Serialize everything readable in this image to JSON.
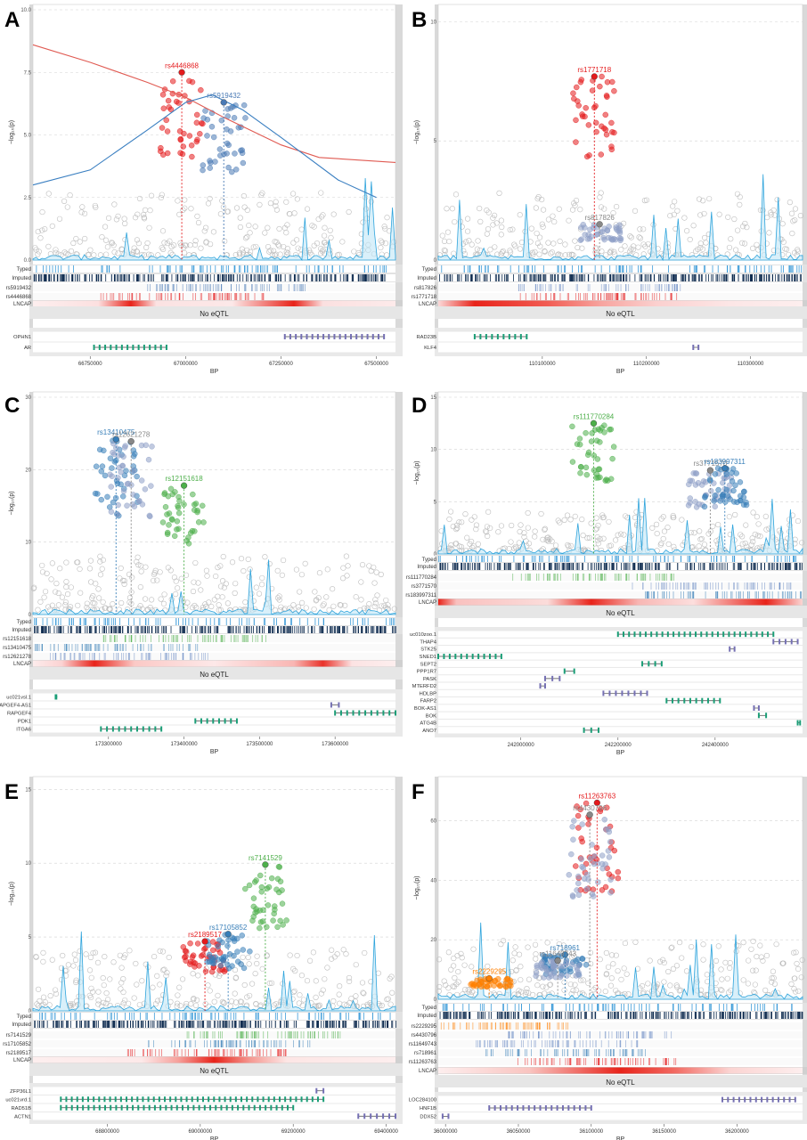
{
  "figure": {
    "panels_meta": "six regional association panels A-F"
  },
  "chart_data": [
    {
      "panel": "A",
      "type": "scatter",
      "ylabel": "−log₁₀(p)",
      "xlabel": "BP",
      "y_ticks": [
        "0.0",
        "2.5",
        "5.0",
        "7.5",
        "10.0"
      ],
      "ylim": [
        0,
        10
      ],
      "x_ticks": [
        "66750000",
        "67000000",
        "67250000",
        "67500000"
      ],
      "xlim": [
        66600000,
        67550000
      ],
      "snps": [
        {
          "id": "rs4446868",
          "color": "#e41a1c",
          "x": 66990000,
          "y": 7.5
        },
        {
          "id": "rs5919432",
          "color": "#4a7ab5",
          "x": 67100000,
          "y": 6.3
        }
      ],
      "tracks": [
        "Typed",
        "Imputed"
      ],
      "snp_tracks": [
        "rs5919432",
        "rs4446868"
      ],
      "eqtl_label": "LNCAP",
      "eqtl_text": "No eQTL",
      "genes": [
        {
          "name": "OPHN1",
          "start": 67260000,
          "end": 67520000,
          "color": "#7570b3",
          "row": 0
        },
        {
          "name": "AR",
          "start": 66760000,
          "end": 66950000,
          "color": "#1b9e77",
          "row": 1
        }
      ],
      "red_curve": [
        [
          66600000,
          8.6
        ],
        [
          66750000,
          7.9
        ],
        [
          66900000,
          7.1
        ],
        [
          67000000,
          6.5
        ],
        [
          67100000,
          5.7
        ],
        [
          67250000,
          4.6
        ],
        [
          67350000,
          4.1
        ],
        [
          67550000,
          3.9
        ]
      ],
      "blue_curve": [
        [
          66600000,
          3.0
        ],
        [
          66750000,
          3.6
        ],
        [
          66900000,
          5.2
        ],
        [
          67000000,
          6.3
        ],
        [
          67070000,
          6.6
        ],
        [
          67150000,
          6.0
        ],
        [
          67250000,
          4.9
        ],
        [
          67400000,
          3.2
        ],
        [
          67500000,
          2.5
        ]
      ]
    },
    {
      "panel": "B",
      "type": "scatter",
      "ylabel": "−log₁₀(p)",
      "xlabel": "BP",
      "y_ticks": [
        "0",
        "5",
        "10"
      ],
      "ylim": [
        0,
        10.5
      ],
      "x_ticks": [
        "110100000",
        "110200000",
        "110300000"
      ],
      "xlim": [
        110000000,
        110350000
      ],
      "snps": [
        {
          "id": "rs1771718",
          "color": "#e41a1c",
          "x": 110150000,
          "y": 7.7
        },
        {
          "id": "rs817826",
          "color": "#888888",
          "x": 110155000,
          "y": 1.5
        }
      ],
      "tracks": [
        "Typed",
        "Imputed"
      ],
      "snp_tracks": [
        "rs817826",
        "rs1771718"
      ],
      "eqtl_label": "LNCAP",
      "eqtl_text": "No eQTL",
      "genes": [
        {
          "name": "RAD23B",
          "start": 110035000,
          "end": 110085000,
          "color": "#1b9e77",
          "row": 0
        },
        {
          "name": "KLF4",
          "start": 110245000,
          "end": 110250000,
          "color": "#7570b3",
          "row": 1
        }
      ]
    },
    {
      "panel": "C",
      "type": "scatter",
      "ylabel": "−log₁₀(p)",
      "xlabel": "BP",
      "y_ticks": [
        "0",
        "10",
        "20",
        "30"
      ],
      "ylim": [
        0,
        30
      ],
      "x_ticks": [
        "173300000",
        "173400000",
        "173500000",
        "173600000"
      ],
      "xlim": [
        173200000,
        173680000
      ],
      "snps": [
        {
          "id": "rs13410475",
          "color": "#377eb8",
          "x": 173310000,
          "y": 24.2
        },
        {
          "id": "rs12621278",
          "color": "#888888",
          "x": 173330000,
          "y": 23.9
        },
        {
          "id": "rs12151618",
          "color": "#4daf4a",
          "x": 173400000,
          "y": 17.8
        }
      ],
      "tracks": [
        "Typed",
        "Imputed"
      ],
      "snp_tracks": [
        "rs12151618",
        "rs13410475",
        "rs12621278"
      ],
      "eqtl_label": "LNCAP",
      "eqtl_text": "No eQTL",
      "genes": [
        {
          "name": "uc021vsl.1",
          "start": 173230000,
          "end": 173231000,
          "color": "#1b9e77",
          "row": 0
        },
        {
          "name": "RAPGEF4-AS1",
          "start": 173595000,
          "end": 173605000,
          "color": "#7570b3",
          "row": 1
        },
        {
          "name": "RAPGEF4",
          "start": 173600000,
          "end": 173680000,
          "color": "#1b9e77",
          "row": 2
        },
        {
          "name": "PDK1",
          "start": 173415000,
          "end": 173470000,
          "color": "#1b9e77",
          "row": 3
        },
        {
          "name": "ITGA6",
          "start": 173290000,
          "end": 173370000,
          "color": "#1b9e77",
          "row": 4
        }
      ]
    },
    {
      "panel": "D",
      "type": "scatter",
      "ylabel": "−log₁₀(p)",
      "xlabel": "BP",
      "y_ticks": [
        "0",
        "5",
        "10",
        "15"
      ],
      "ylim": [
        0,
        15
      ],
      "x_ticks": [
        "242000000",
        "242200000",
        "242400000"
      ],
      "xlim": [
        241830000,
        242580000
      ],
      "snps": [
        {
          "id": "rs111770284",
          "color": "#4daf4a",
          "x": 242150000,
          "y": 12.5
        },
        {
          "id": "rs3771570",
          "color": "#888888",
          "x": 242390000,
          "y": 8.0
        },
        {
          "id": "rs183997311",
          "color": "#377eb8",
          "x": 242420000,
          "y": 8.2
        }
      ],
      "tracks": [
        "Typed",
        "Imputed"
      ],
      "snp_tracks": [
        "rs111770284",
        "rs3771570",
        "rs183997311"
      ],
      "eqtl_label": "LNCAP",
      "eqtl_text": "No eQTL",
      "genes": [
        {
          "name": "uc010zoo.1",
          "start": 242200000,
          "end": 242520000,
          "color": "#1b9e77",
          "row": 0
        },
        {
          "name": "THAP4",
          "start": 242520000,
          "end": 242570000,
          "color": "#7570b3",
          "row": 1
        },
        {
          "name": "STK25",
          "start": 242430000,
          "end": 242440000,
          "color": "#7570b3",
          "row": 2
        },
        {
          "name": "SNED1",
          "start": 241830000,
          "end": 241960000,
          "color": "#1b9e77",
          "row": 3
        },
        {
          "name": "SEPT2",
          "start": 242250000,
          "end": 242290000,
          "color": "#1b9e77",
          "row": 4
        },
        {
          "name": "PPP1R7",
          "start": 242090000,
          "end": 242110000,
          "color": "#1b9e77",
          "row": 5
        },
        {
          "name": "PASK",
          "start": 242050000,
          "end": 242080000,
          "color": "#7570b3",
          "row": 6
        },
        {
          "name": "MTERFD2",
          "start": 242040000,
          "end": 242050000,
          "color": "#7570b3",
          "row": 7
        },
        {
          "name": "HDLBP",
          "start": 242170000,
          "end": 242260000,
          "color": "#7570b3",
          "row": 8
        },
        {
          "name": "FARP2",
          "start": 242300000,
          "end": 242410000,
          "color": "#1b9e77",
          "row": 9
        },
        {
          "name": "BOK-AS1",
          "start": 242480000,
          "end": 242490000,
          "color": "#7570b3",
          "row": 10
        },
        {
          "name": "BOK",
          "start": 242490000,
          "end": 242505000,
          "color": "#1b9e77",
          "row": 11
        },
        {
          "name": "ATG4B",
          "start": 242570000,
          "end": 242575000,
          "color": "#1b9e77",
          "row": 12
        },
        {
          "name": "ANO7",
          "start": 242130000,
          "end": 242160000,
          "color": "#1b9e77",
          "row": 13
        }
      ]
    },
    {
      "panel": "E",
      "type": "scatter",
      "ylabel": "−log₁₀(p)",
      "xlabel": "BP",
      "y_ticks": [
        "0",
        "5",
        "10",
        "15"
      ],
      "ylim": [
        0,
        15.5
      ],
      "x_ticks": [
        "68800000",
        "69000000",
        "69200000",
        "69400000"
      ],
      "xlim": [
        68640000,
        69420000
      ],
      "snps": [
        {
          "id": "rs2189517",
          "color": "#e41a1c",
          "x": 69010000,
          "y": 4.7
        },
        {
          "id": "rs17105852",
          "color": "#377eb8",
          "x": 69060000,
          "y": 5.2
        },
        {
          "id": "rs7141529",
          "color": "#4daf4a",
          "x": 69140000,
          "y": 9.9
        }
      ],
      "tracks": [
        "Typed",
        "Imputed"
      ],
      "snp_tracks": [
        "rs7141529",
        "rs17105852",
        "rs2189517"
      ],
      "eqtl_label": "LNCAP",
      "eqtl_text": "No eQTL",
      "genes": [
        {
          "name": "ZFP36L1",
          "start": 69250000,
          "end": 69265000,
          "color": "#7570b3",
          "row": 0
        },
        {
          "name": "uc021vrd.1",
          "start": 68700000,
          "end": 69265000,
          "color": "#1b9e77",
          "row": 1
        },
        {
          "name": "RAD51B",
          "start": 68700000,
          "end": 69200000,
          "color": "#1b9e77",
          "row": 2
        },
        {
          "name": "ACTN1",
          "start": 69340000,
          "end": 69420000,
          "color": "#7570b3",
          "row": 3
        }
      ]
    },
    {
      "panel": "F",
      "type": "scatter",
      "ylabel": "−log₁₀(p)",
      "xlabel": "BP",
      "y_ticks": [
        "0",
        "20",
        "40",
        "60"
      ],
      "ylim": [
        0,
        73
      ],
      "x_ticks": [
        "36000000",
        "36050000",
        "36100000",
        "36150000",
        "36200000"
      ],
      "xlim": [
        35995000,
        36245000
      ],
      "snps": [
        {
          "id": "rs11263763",
          "color": "#e41a1c",
          "x": 36104000,
          "y": 66
        },
        {
          "id": "rs4430796",
          "color": "#888888",
          "x": 36099000,
          "y": 62
        },
        {
          "id": "rs718961",
          "color": "#377eb8",
          "x": 36082000,
          "y": 15
        },
        {
          "id": "rs11649743",
          "color": "#888888",
          "x": 36077000,
          "y": 13
        },
        {
          "id": "rs2229295",
          "color": "#ff7f00",
          "x": 36030000,
          "y": 7
        }
      ],
      "tracks": [
        "Typed",
        "Imputed"
      ],
      "snp_tracks": [
        "rs2229295",
        "rs4430796",
        "rs11649743",
        "rs718961",
        "rs11263763"
      ],
      "eqtl_label": "LNCAP",
      "eqtl_text": "No eQTL",
      "genes": [
        {
          "name": "LOC284100",
          "start": 36190000,
          "end": 36240000,
          "color": "#7570b3",
          "row": 0
        },
        {
          "name": "HNF1B",
          "start": 36030000,
          "end": 36100000,
          "color": "#7570b3",
          "row": 1
        },
        {
          "name": "DDX52",
          "start": 35998000,
          "end": 36002000,
          "color": "#7570b3",
          "row": 2
        }
      ]
    }
  ]
}
